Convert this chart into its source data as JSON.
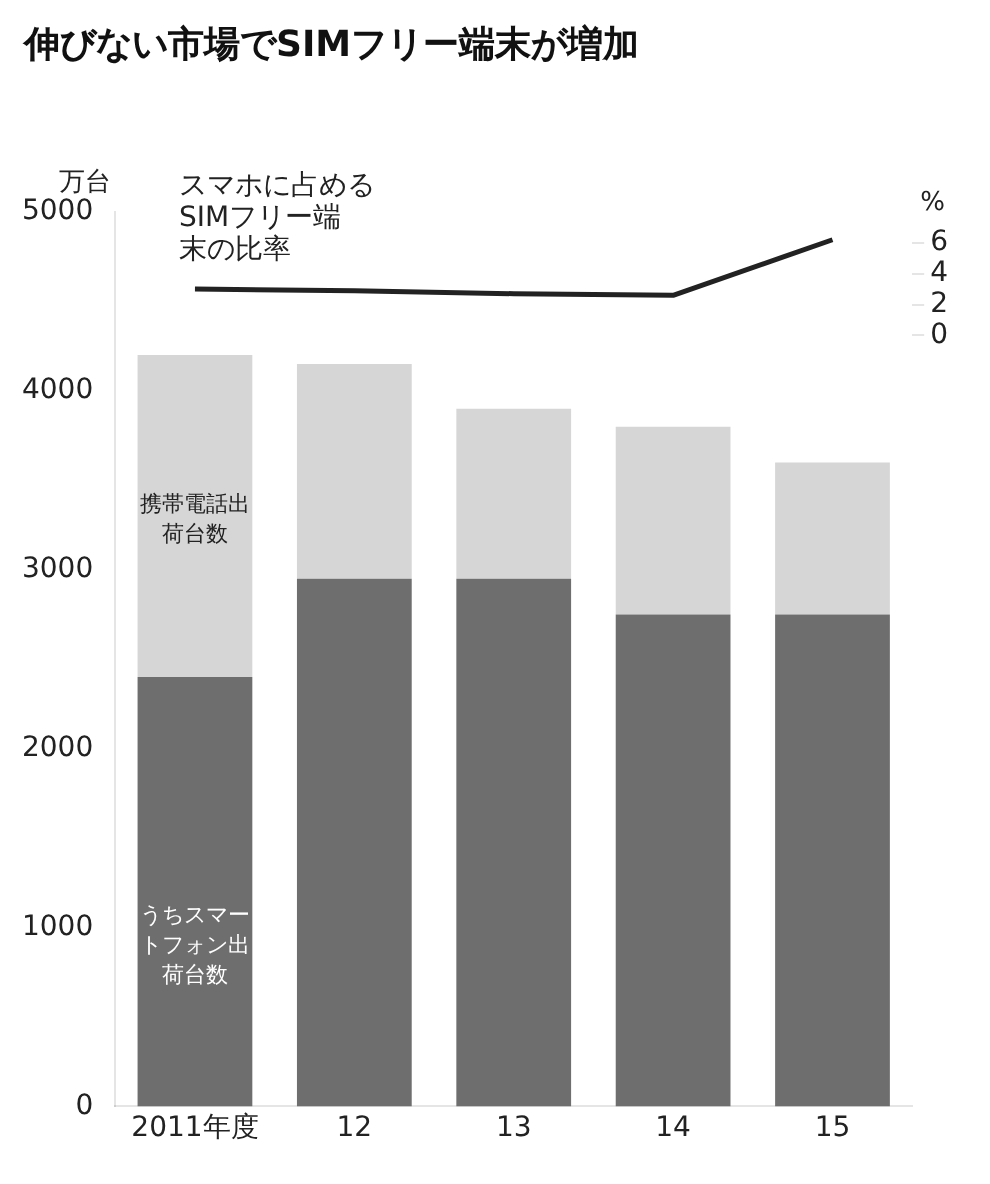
{
  "chart_data": {
    "type": "bar",
    "title": "伸びない市場でSIMフリー端末が増加",
    "ylabel": "万台",
    "y2label": "%",
    "categories": [
      "2011年度",
      "12",
      "13",
      "14",
      "15"
    ],
    "stacked": true,
    "grid": false,
    "legend": false,
    "series": [
      {
        "name": "うちスマートフォン出荷台数",
        "color": "#6e6e6e",
        "values": [
          2400,
          2950,
          2950,
          2750,
          2750
        ]
      },
      {
        "name": "携帯電話出荷台数",
        "color": "#d6d6d6",
        "values": [
          1800,
          1200,
          950,
          1050,
          850
        ]
      },
      {
        "name": "スマホに占めるSIMフリー端末の比率",
        "type": "line",
        "axis": "y2",
        "color": "#222222",
        "marker": "none",
        "values": [
          3.0,
          2.9,
          2.7,
          2.6,
          6.2
        ]
      }
    ],
    "ylim": [
      0,
      5000
    ],
    "yticks": [
      0,
      1000,
      2000,
      3000,
      4000,
      5000
    ],
    "y2lim": [
      -50,
      8
    ],
    "y2ticks": [
      0,
      2,
      4,
      6
    ]
  }
}
